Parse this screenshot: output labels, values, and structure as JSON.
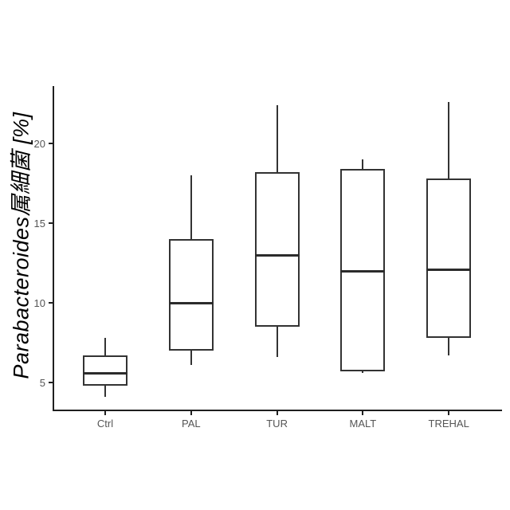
{
  "chart_data": {
    "type": "boxplot",
    "title": "",
    "xlabel": "",
    "ylabel": "Parabacteroides属細菌 [%]",
    "ylabel_italic": true,
    "categories": [
      "Ctrl",
      "PAL",
      "TUR",
      "MALT",
      "TREHAL"
    ],
    "series": [
      {
        "category": "Ctrl",
        "min": 4.1,
        "q1": 4.8,
        "median": 5.6,
        "q3": 6.7,
        "max": 7.8
      },
      {
        "category": "PAL",
        "min": 6.1,
        "q1": 7.0,
        "median": 10.0,
        "q3": 14.0,
        "max": 18.0
      },
      {
        "category": "TUR",
        "min": 6.6,
        "q1": 8.5,
        "median": 13.0,
        "q3": 18.2,
        "max": 22.4
      },
      {
        "category": "MALT",
        "min": 5.6,
        "q1": 5.7,
        "median": 12.0,
        "q3": 18.4,
        "max": 19.0
      },
      {
        "category": "TREHAL",
        "min": 6.7,
        "q1": 7.8,
        "median": 12.1,
        "q3": 17.8,
        "max": 22.6
      }
    ],
    "yticks": [
      5,
      10,
      15,
      20
    ],
    "ylim": [
      3.3,
      23.6
    ],
    "grid": false,
    "legend": null,
    "colors": {
      "background": "#ffffff",
      "axis_line": "#1f1f1f",
      "box_fill": "#ffffff",
      "box_border": "#333333",
      "median_line": "#2b2b2b",
      "tick_label": "#555555",
      "ylabel_text": "#000000"
    }
  }
}
